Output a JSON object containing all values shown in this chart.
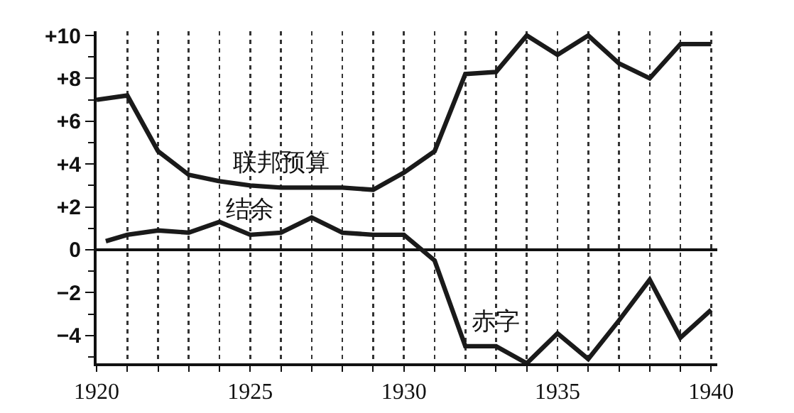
{
  "chart_data": {
    "type": "line",
    "x": [
      1920,
      1921,
      1922,
      1923,
      1924,
      1925,
      1926,
      1927,
      1928,
      1929,
      1930,
      1931,
      1932,
      1933,
      1934,
      1935,
      1936,
      1937,
      1938,
      1939,
      1940
    ],
    "series": [
      {
        "color": "#1a1a1a",
        "values": [
          7.0,
          7.2,
          4.6,
          3.5,
          3.2,
          3.0,
          2.9,
          2.9,
          2.9,
          2.8,
          3.6,
          4.6,
          8.2,
          8.3,
          10.0,
          9.1,
          10.0,
          8.7,
          8.0,
          9.6,
          9.6
        ]
      },
      {
        "color": "#1a1a1a",
        "x": [
          1920.3,
          1921,
          1922,
          1923,
          1924,
          1925,
          1926,
          1927,
          1928,
          1929,
          1930,
          1931,
          1932,
          1933,
          1934,
          1935,
          1936,
          1937,
          1938,
          1939,
          1940
        ],
        "values": [
          0.4,
          0.7,
          0.9,
          0.8,
          1.3,
          0.7,
          0.8,
          1.5,
          0.8,
          0.7,
          0.7,
          -0.5,
          -4.5,
          -4.5,
          -5.3,
          -3.9,
          -5.1,
          -3.3,
          -1.4,
          -4.1,
          -2.8
        ]
      }
    ],
    "annotations": [
      {
        "text": "联邦预算",
        "x": 1926,
        "y": 2.9
      },
      {
        "text": "结余",
        "x": 1925,
        "y": 0.7
      },
      {
        "text": "赤字",
        "x": 1933,
        "y": -4.5
      }
    ],
    "xlim": [
      1920,
      1940.2
    ],
    "xticks": [
      1920,
      {
        "value": 1921,
        "label": null
      },
      {
        "value": 1922,
        "label": null
      },
      {
        "value": 1923,
        "label": null
      },
      {
        "value": 1924,
        "label": null
      },
      1925,
      {
        "value": 1926,
        "label": null
      },
      {
        "value": 1927,
        "label": null
      },
      {
        "value": 1928,
        "label": null
      },
      {
        "value": 1929,
        "label": null
      },
      1930,
      {
        "value": 1931,
        "label": null
      },
      {
        "value": 1932,
        "label": null
      },
      {
        "value": 1933,
        "label": null
      },
      {
        "value": 1934,
        "label": null
      },
      1935,
      {
        "value": 1936,
        "label": null
      },
      {
        "value": 1937,
        "label": null
      },
      {
        "value": 1938,
        "label": null
      },
      {
        "value": 1939,
        "label": null
      },
      1940
    ],
    "ylim": [
      -5.3,
      10.2
    ],
    "yticks": [
      {
        "value": -4,
        "label": "−4"
      },
      {
        "value": -2,
        "label": "−2"
      },
      0,
      {
        "value": 2,
        "label": "+2"
      },
      {
        "value": 4,
        "label": "+4"
      },
      {
        "value": 6,
        "label": "+6"
      },
      {
        "value": 8,
        "label": "+8"
      },
      {
        "value": 10,
        "label": "+10"
      }
    ],
    "grid": "x",
    "legend": false,
    "marker": "none",
    "line_style": "solid"
  }
}
